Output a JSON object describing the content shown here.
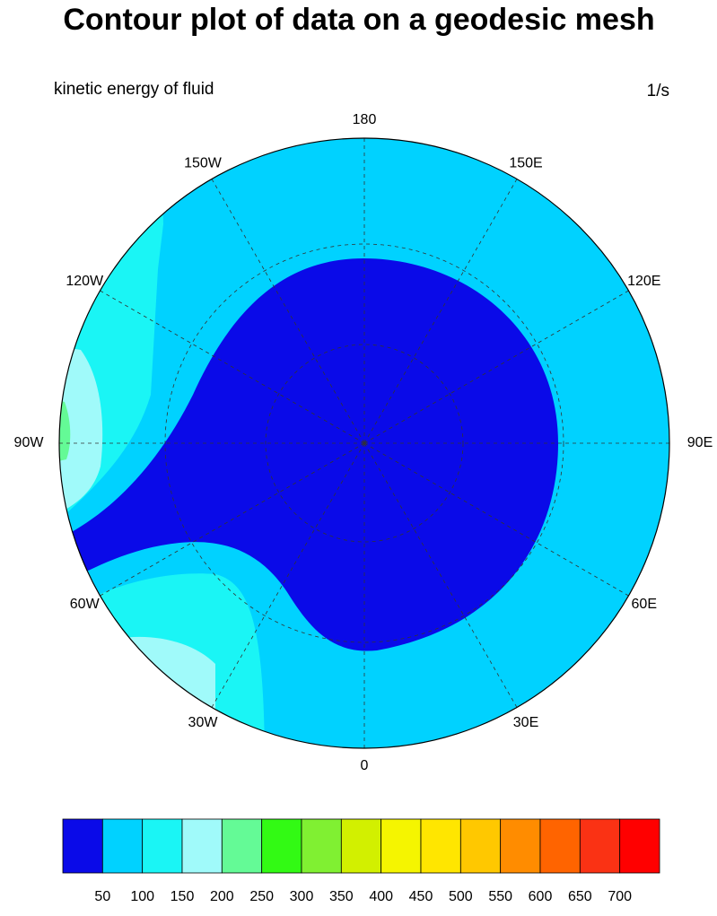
{
  "title": "Contour plot of data on a geodesic mesh",
  "left_string": "kinetic energy of fluid",
  "right_string": "1/s",
  "longitude_labels": [
    "0",
    "30E",
    "60E",
    "90E",
    "120E",
    "150E",
    "180",
    "150W",
    "120W",
    "90W",
    "60W",
    "30W"
  ],
  "colorbar": {
    "levels": [
      50,
      100,
      150,
      200,
      250,
      300,
      350,
      400,
      450,
      500,
      550,
      600,
      650,
      700
    ],
    "colors": [
      "#0a0ae8",
      "#00d2ff",
      "#1af5f5",
      "#a0fafa",
      "#64fa96",
      "#32fa14",
      "#80f032",
      "#d2f000",
      "#f5f500",
      "#ffe600",
      "#ffc800",
      "#ff8c00",
      "#ff6400",
      "#fa3214",
      "#ff0000"
    ]
  }
}
